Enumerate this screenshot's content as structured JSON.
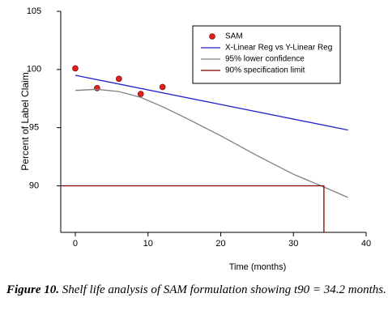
{
  "chart_data": {
    "type": "line",
    "xlabel": "Time (months)",
    "ylabel": "Percent of Label Claim",
    "xlim": [
      -2,
      40
    ],
    "xticks": [
      0,
      10,
      20,
      30,
      40
    ],
    "ylim": [
      86,
      105
    ],
    "yticks": [
      90,
      95,
      100,
      105
    ],
    "series": [
      {
        "name": "SAM",
        "type": "scatter",
        "color": "#e0201b",
        "x": [
          0,
          3,
          6,
          9,
          12
        ],
        "values": [
          100.1,
          98.4,
          99.2,
          97.9,
          98.5
        ]
      },
      {
        "name": "X-Linear Reg vs Y-Linear Reg",
        "type": "line",
        "color": "#2424c8",
        "x": [
          0,
          37.5
        ],
        "values": [
          99.5,
          94.8
        ]
      },
      {
        "name": "95% lower confidence",
        "type": "line",
        "color": "#808080",
        "x": [
          0,
          3,
          6,
          9,
          12,
          15,
          20,
          25,
          30,
          34.2,
          37.5
        ],
        "values": [
          98.2,
          98.3,
          98.1,
          97.6,
          96.8,
          95.9,
          94.3,
          92.6,
          91.0,
          89.9,
          89.0
        ]
      },
      {
        "name": "90% specification limit",
        "type": "line",
        "color": "#800000",
        "x": [
          -2,
          34.2,
          34.2
        ],
        "values": [
          90,
          90,
          86
        ]
      }
    ]
  },
  "caption": {
    "label": "Figure 10.",
    "text": "Shelf life analysis of SAM formulation showing t90 = 34.2 months."
  }
}
